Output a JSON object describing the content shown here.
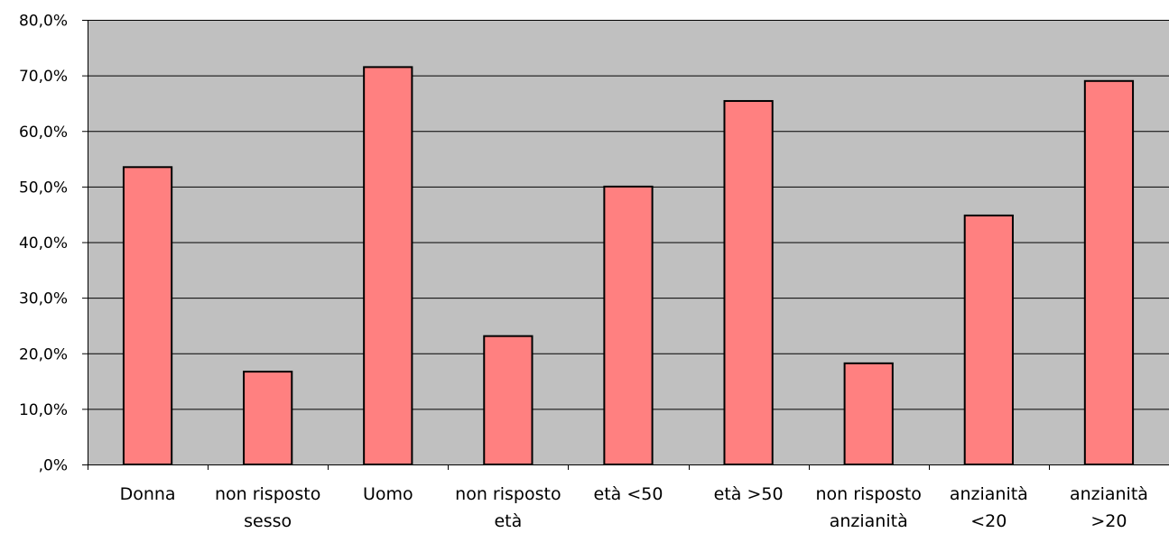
{
  "chart_data": {
    "type": "bar",
    "categories": [
      [
        "Donna"
      ],
      [
        "non risposto",
        "sesso"
      ],
      [
        "Uomo"
      ],
      [
        "non risposto",
        "età"
      ],
      [
        "età <50"
      ],
      [
        "età >50"
      ],
      [
        "non risposto",
        "anzianità"
      ],
      [
        "anzianità",
        "<20"
      ],
      [
        "anzianità",
        ">20"
      ]
    ],
    "values": [
      53.5,
      16.7,
      71.5,
      23.1,
      50.0,
      65.4,
      18.2,
      44.8,
      69.0
    ],
    "title": "",
    "xlabel": "",
    "ylabel": "",
    "ylim": [
      0,
      80
    ],
    "yticks": [
      0,
      10,
      20,
      30,
      40,
      50,
      60,
      70,
      80
    ],
    "ytick_labels": [
      ",0%",
      "10,0%",
      "20,0%",
      "30,0%",
      "40,0%",
      "50,0%",
      "60,0%",
      "70,0%",
      "80,0%"
    ],
    "grid": true,
    "legend": "none",
    "colors": {
      "bar_fill": "#ff8080",
      "bar_stroke": "#000000",
      "plot_background": "#c0c0c0",
      "grid": "#000000"
    }
  }
}
